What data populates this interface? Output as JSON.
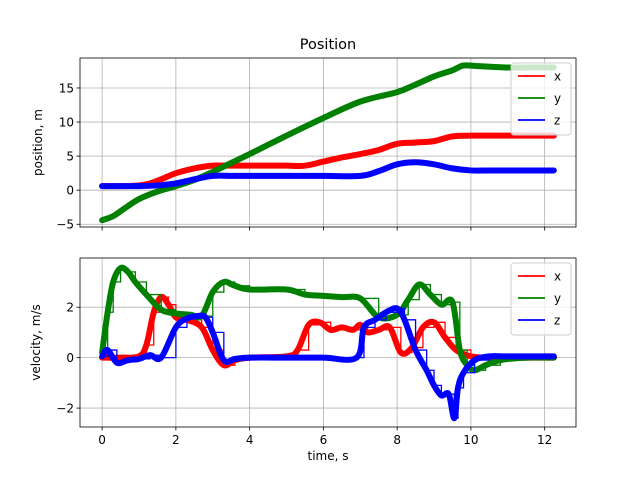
{
  "chart_data": [
    {
      "type": "line",
      "title": "Position",
      "xlabel": "",
      "ylabel": "position, m",
      "xlim": [
        -0.6,
        12.85
      ],
      "ylim": [
        -5.4,
        19.4
      ],
      "xticks": [
        0,
        2,
        4,
        6,
        8,
        10,
        12
      ],
      "yticks": [
        -5,
        0,
        5,
        10,
        15
      ],
      "grid": true,
      "legend": "top-right",
      "series": [
        {
          "name": "x",
          "color": "#ff0000",
          "x": [
            0,
            0.5,
            1,
            1.3,
            1.6,
            2,
            2.5,
            3,
            3.5,
            4,
            4.5,
            5,
            5.5,
            6,
            6.5,
            7,
            7.5,
            8,
            8.5,
            9,
            9.5,
            10,
            10.5,
            11,
            11.5,
            12,
            12.25
          ],
          "y": [
            0.6,
            0.6,
            0.7,
            1.0,
            1.6,
            2.5,
            3.2,
            3.6,
            3.6,
            3.6,
            3.6,
            3.6,
            3.6,
            4.2,
            4.8,
            5.3,
            5.9,
            6.8,
            7.0,
            7.2,
            7.9,
            8.0,
            8.0,
            8.0,
            8.0,
            8.0,
            8.0
          ]
        },
        {
          "name": "y",
          "color": "#008000",
          "x": [
            0,
            0.3,
            0.6,
            1,
            1.5,
            2,
            2.5,
            3,
            3.5,
            4,
            5,
            6,
            7,
            8,
            8.5,
            9,
            9.5,
            9.8,
            10.2,
            10.6,
            11,
            11.5,
            12,
            12.25
          ],
          "y": [
            -4.4,
            -3.8,
            -2.7,
            -1.3,
            -0.2,
            0.6,
            1.5,
            2.7,
            4.0,
            5.3,
            8.0,
            10.6,
            13.0,
            14.4,
            15.5,
            16.7,
            17.6,
            18.3,
            18.2,
            18.1,
            18.0,
            18.0,
            18.0,
            18.0
          ]
        },
        {
          "name": "z",
          "color": "#0000ff",
          "x": [
            0,
            0.5,
            1,
            1.5,
            2,
            2.5,
            3,
            3.5,
            4,
            5,
            6,
            7,
            7.5,
            8,
            8.5,
            9,
            9.5,
            10,
            10.5,
            11,
            11.5,
            12,
            12.25
          ],
          "y": [
            0.6,
            0.6,
            0.6,
            0.7,
            1.0,
            1.6,
            2.1,
            2.1,
            2.1,
            2.1,
            2.1,
            2.1,
            2.8,
            3.8,
            4.1,
            3.8,
            3.2,
            2.9,
            2.9,
            2.9,
            2.9,
            2.9,
            2.9
          ]
        }
      ]
    },
    {
      "type": "line",
      "title": "",
      "xlabel": "time, s",
      "ylabel": "velocity, m/s",
      "xlim": [
        -0.6,
        12.85
      ],
      "ylim": [
        -2.75,
        3.95
      ],
      "xticks": [
        0,
        2,
        4,
        6,
        8,
        10,
        12
      ],
      "yticks": [
        -2,
        0,
        2
      ],
      "grid": true,
      "legend": "top-right",
      "series": [
        {
          "name": "x",
          "color": "#ff0000",
          "x": [
            0,
            0.5,
            1,
            1.2,
            1.4,
            1.6,
            1.8,
            2,
            2.3,
            2.7,
            3,
            3.3,
            3.6,
            4,
            5,
            5.3,
            5.6,
            5.9,
            6.2,
            6.5,
            6.8,
            7.0,
            7.2,
            7.5,
            7.8,
            8.1,
            8.4,
            8.7,
            9.0,
            9.3,
            9.6,
            10,
            10.5,
            11,
            12,
            12.25
          ],
          "y": [
            0,
            0,
            0.05,
            0.5,
            1.8,
            2.4,
            2.1,
            1.6,
            1.5,
            1.2,
            0.3,
            -0.3,
            -0.1,
            0,
            0.05,
            0.3,
            1.3,
            1.4,
            1.1,
            1.2,
            1.1,
            1.3,
            1.0,
            1.1,
            1.2,
            0.2,
            0.4,
            1.2,
            1.4,
            0.8,
            0.3,
            0.05,
            0,
            0,
            0,
            0
          ]
        },
        {
          "name": "y",
          "color": "#008000",
          "x": [
            0,
            0.15,
            0.3,
            0.5,
            0.7,
            0.9,
            1.2,
            1.6,
            2,
            2.4,
            2.7,
            3,
            3.3,
            3.6,
            4,
            5,
            5.5,
            6,
            6.5,
            7,
            7.5,
            8,
            8.3,
            8.6,
            8.9,
            9.2,
            9.5,
            9.7,
            9.9,
            10.1,
            10.4,
            10.8,
            11.5,
            12.25
          ],
          "y": [
            0.2,
            1.8,
            3.0,
            3.55,
            3.4,
            3.0,
            2.5,
            1.9,
            1.75,
            1.7,
            1.65,
            2.6,
            3.0,
            2.85,
            2.7,
            2.7,
            2.5,
            2.45,
            2.4,
            2.35,
            1.6,
            1.7,
            2.3,
            2.9,
            2.5,
            2.1,
            2.2,
            0.3,
            -0.3,
            -0.5,
            -0.3,
            -0.1,
            0,
            0
          ]
        },
        {
          "name": "z",
          "color": "#0000ff",
          "x": [
            0,
            0.15,
            0.4,
            0.7,
            1.0,
            1.3,
            1.6,
            2.0,
            2.3,
            2.6,
            2.8,
            3.0,
            3.3,
            3.6,
            4,
            5,
            6,
            6.9,
            7.1,
            7.4,
            7.7,
            8.0,
            8.2,
            8.5,
            8.8,
            9.0,
            9.2,
            9.4,
            9.55,
            9.65,
            9.8,
            10.1,
            10.5,
            11,
            12,
            12.25
          ],
          "y": [
            0.05,
            0.3,
            -0.2,
            -0.1,
            -0.05,
            0.1,
            0.0,
            1.2,
            1.55,
            1.65,
            1.6,
            1.0,
            -0.1,
            -0.05,
            0,
            0,
            0,
            0,
            1.2,
            1.5,
            1.8,
            1.95,
            1.5,
            0.3,
            -0.5,
            -1.1,
            -1.5,
            -1.45,
            -2.4,
            -1.2,
            -0.6,
            -0.1,
            0.05,
            0.05,
            0.05,
            0.05
          ]
        }
      ]
    }
  ]
}
